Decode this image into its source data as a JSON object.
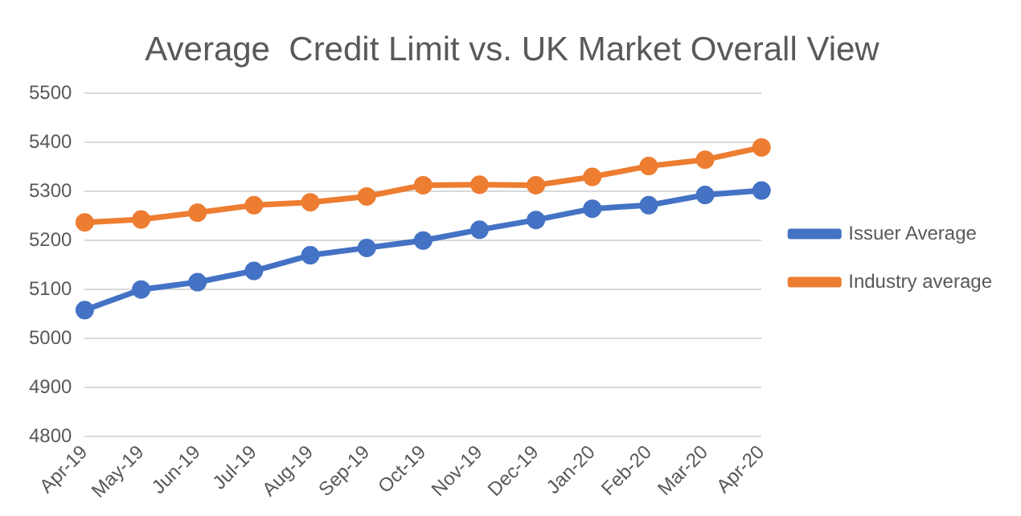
{
  "chart_data": {
    "type": "line",
    "title": "Average  Credit Limit vs. UK Market Overall View",
    "categories": [
      "Apr-19",
      "May-19",
      "Jun-19",
      "Jul-19",
      "Aug-19",
      "Sep-19",
      "Oct-19",
      "Nov-19",
      "Dec-19",
      "Jan-20",
      "Feb-20",
      "Mar-20",
      "Apr-20"
    ],
    "series": [
      {
        "name": "Issuer Average",
        "color": "#4472c4",
        "values": [
          5058,
          5100,
          5115,
          5138,
          5170,
          5185,
          5200,
          5222,
          5242,
          5265,
          5272,
          5293,
          5302
        ]
      },
      {
        "name": "Industry average",
        "color": "#ed7d31",
        "values": [
          5237,
          5243,
          5257,
          5272,
          5278,
          5290,
          5313,
          5314,
          5313,
          5330,
          5352,
          5365,
          5390
        ]
      }
    ],
    "ylim": [
      4800,
      5500
    ],
    "yticks": [
      4800,
      4900,
      5000,
      5100,
      5200,
      5300,
      5400,
      5500
    ],
    "grid": "y",
    "legend": "right",
    "marker": "circle",
    "line_style": "solid"
  }
}
